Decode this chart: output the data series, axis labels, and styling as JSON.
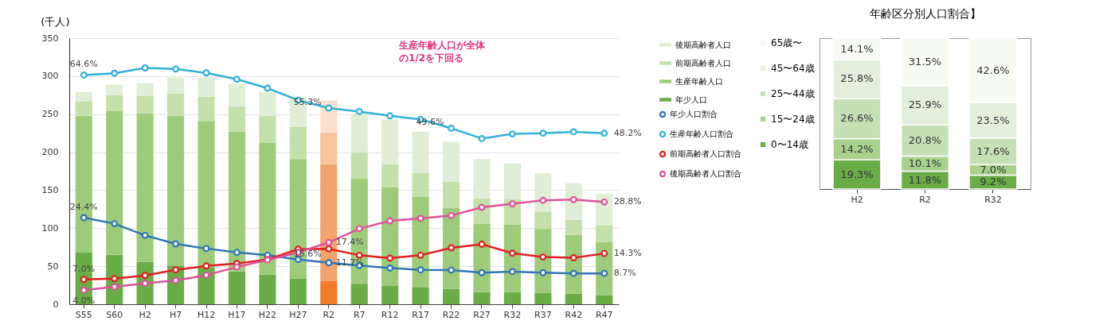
{
  "chart_data": [
    {
      "type": "bar",
      "stacked": true,
      "ylabel": "(千人)",
      "categories": [
        "S55",
        "S60",
        "H2",
        "H7",
        "H12",
        "H17",
        "H22",
        "H27",
        "R2",
        "R7",
        "R12",
        "R17",
        "R22",
        "R27",
        "R32",
        "R37",
        "R42",
        "R47"
      ],
      "ylim": [
        0,
        350
      ],
      "yticks": [
        0,
        50,
        100,
        150,
        200,
        250,
        300,
        350
      ],
      "y2lim": [
        0,
        75
      ],
      "grid": "y",
      "legend": "right",
      "marker": "circle",
      "line_style": "solid",
      "annotations": [
        "生産年齢人口が全体の1/2を下回る"
      ],
      "series": [
        {
          "name": "年少人口",
          "color": "#6aac46",
          "colors": [
            "#6aac46",
            "#6aac46",
            "#6aac46",
            "#6aac46",
            "#6aac46",
            "#6aac46",
            "#6aac46",
            "#6aac46",
            "#f07c2c",
            "#6aac46",
            "#6aac46",
            "#6aac46",
            "#6aac46",
            "#6aac46",
            "#6aac46",
            "#6aac46",
            "#6aac46",
            "#6aac46"
          ],
          "values": [
            68,
            65,
            56,
            51,
            48,
            43,
            39,
            34,
            31,
            27,
            24,
            22,
            20,
            16,
            16,
            15,
            14,
            12
          ]
        },
        {
          "name": "生産年齢人口",
          "color": "#9ccc7a",
          "colors": [
            "#9ccc7a",
            "#9ccc7a",
            "#9ccc7a",
            "#9ccc7a",
            "#9ccc7a",
            "#9ccc7a",
            "#9ccc7a",
            "#9ccc7a",
            "#f4a46a",
            "#9ccc7a",
            "#9ccc7a",
            "#9ccc7a",
            "#9ccc7a",
            "#9ccc7a",
            "#9ccc7a",
            "#9ccc7a",
            "#9ccc7a",
            "#9ccc7a"
          ],
          "values": [
            180,
            189,
            195,
            197,
            193,
            184,
            173,
            157,
            153,
            138,
            130,
            119,
            107,
            90,
            89,
            84,
            77,
            70
          ]
        },
        {
          "name": "前期高齢者人口",
          "color": "#c3e0ab",
          "colors": [
            "#c3e0ab",
            "#c3e0ab",
            "#c3e0ab",
            "#c3e0ab",
            "#c3e0ab",
            "#c3e0ab",
            "#c3e0ab",
            "#c3e0ab",
            "#f7c49c",
            "#c3e0ab",
            "#c3e0ab",
            "#c3e0ab",
            "#c3e0ab",
            "#c3e0ab",
            "#c3e0ab",
            "#c3e0ab",
            "#c3e0ab",
            "#c3e0ab"
          ],
          "values": [
            19,
            21,
            23,
            29,
            32,
            33,
            36,
            42,
            42,
            35,
            30,
            32,
            34,
            33,
            33,
            23,
            20,
            22
          ]
        },
        {
          "name": "後期高齢者人口",
          "color": "#e0eed5",
          "colors": [
            "#e0eed5",
            "#e0eed5",
            "#e0eed5",
            "#e0eed5",
            "#e0eed5",
            "#e0eed5",
            "#e0eed5",
            "#e0eed5",
            "#fbe0cc",
            "#e0eed5",
            "#e0eed5",
            "#e0eed5",
            "#e0eed5",
            "#e0eed5",
            "#e0eed5",
            "#e0eed5",
            "#e0eed5",
            "#e0eed5"
          ],
          "values": [
            12,
            14,
            17,
            21,
            25,
            30,
            31,
            40,
            42,
            51,
            59,
            54,
            53,
            52,
            47,
            50,
            48,
            41
          ]
        },
        {
          "name": "年少人口割合",
          "type": "line",
          "axis": "y2",
          "color": "#2e75b6",
          "values": [
            24.4,
            22.7,
            19.4,
            17.0,
            15.7,
            14.6,
            13.8,
            12.6,
            11.7,
            10.9,
            10.2,
            9.7,
            9.6,
            8.9,
            9.2,
            8.9,
            8.7,
            8.7
          ],
          "value_labels": [
            "24.4%",
            null,
            null,
            null,
            null,
            null,
            null,
            null,
            "11.7%",
            null,
            null,
            null,
            null,
            null,
            null,
            null,
            null,
            "8.7%"
          ]
        },
        {
          "name": "生産年齢人口割合",
          "type": "line",
          "axis": "y2",
          "color": "#31b0d8",
          "values": [
            64.6,
            65.1,
            66.6,
            66.3,
            65.2,
            63.4,
            60.9,
            57.5,
            55.3,
            54.3,
            53.1,
            52.1,
            49.6,
            46.7,
            48.0,
            48.2,
            48.6,
            48.2
          ],
          "value_labels": [
            "64.6%",
            null,
            null,
            null,
            null,
            null,
            null,
            null,
            "55.3%",
            null,
            null,
            null,
            "49.6%",
            null,
            null,
            null,
            null,
            "48.2%"
          ]
        },
        {
          "name": "前期高齢者人口割合",
          "type": "line",
          "axis": "y2",
          "color": "#e02020",
          "values": [
            7.0,
            7.2,
            8.1,
            9.7,
            10.8,
            11.5,
            12.6,
            15.5,
            15.6,
            13.8,
            13.0,
            13.8,
            15.9,
            16.9,
            14.4,
            13.3,
            13.1,
            14.3
          ],
          "value_labels": [
            "7.0%",
            null,
            null,
            null,
            null,
            null,
            null,
            null,
            "15.6%",
            null,
            null,
            null,
            null,
            null,
            null,
            null,
            null,
            "14.3%"
          ]
        },
        {
          "name": "後期高齢者人口割合",
          "type": "line",
          "axis": "y2",
          "color": "#e0509a",
          "values": [
            4.0,
            4.9,
            5.9,
            6.7,
            8.2,
            10.5,
            12.5,
            14.6,
            17.4,
            21.3,
            23.5,
            24.2,
            25.0,
            27.3,
            28.3,
            29.3,
            29.5,
            28.8
          ],
          "value_labels": [
            "4.0%",
            null,
            null,
            null,
            null,
            null,
            null,
            null,
            "17.4%",
            null,
            null,
            null,
            null,
            null,
            null,
            null,
            null,
            "28.8%"
          ]
        }
      ]
    },
    {
      "type": "bar",
      "stacked": true,
      "title": "年齢区分別人口割合】",
      "categories": [
        "H2",
        "R2",
        "R32"
      ],
      "tick_labels": "x",
      "legend": "left",
      "series": [
        {
          "name": "0〜14歳",
          "color": "#6aac46",
          "values": [
            19.3,
            11.8,
            9.2
          ],
          "value_labels": [
            "19.3%",
            "11.8%",
            "9.2%"
          ]
        },
        {
          "name": "15〜24歳",
          "color": "#a9d18e",
          "values": [
            14.2,
            10.1,
            7.0
          ],
          "value_labels": [
            "14.2%",
            "10.1%",
            "7.0%"
          ]
        },
        {
          "name": "25〜44歳",
          "color": "#c5e0b4",
          "values": [
            26.6,
            20.8,
            17.6
          ],
          "value_labels": [
            "26.6%",
            "20.8%",
            "17.6%"
          ]
        },
        {
          "name": "45〜64歳",
          "color": "#e2efda",
          "values": [
            25.8,
            25.9,
            23.5
          ],
          "value_labels": [
            "25.8%",
            "25.9%",
            "23.5%"
          ]
        },
        {
          "name": "65歳〜",
          "color": "#f8fbf4",
          "values": [
            14.1,
            31.5,
            42.6
          ],
          "value_labels": [
            "14.1%",
            "31.5%",
            "42.6%"
          ]
        }
      ]
    }
  ]
}
